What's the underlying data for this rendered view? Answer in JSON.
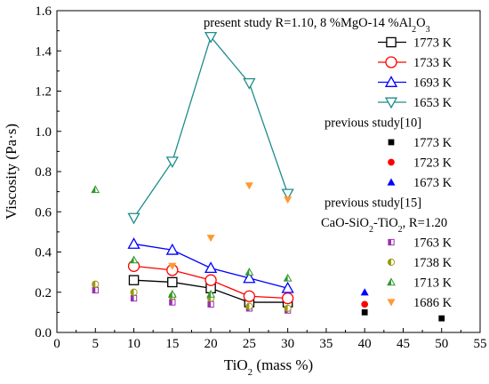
{
  "chart_data": {
    "type": "scatter",
    "xlabel": {
      "main": "TiO",
      "sub": "2",
      "rest": " (mass %)"
    },
    "ylabel": "Viscosity (Pa·s)",
    "xlim": [
      0,
      55
    ],
    "ylim": [
      0,
      1.6
    ],
    "xticks": [
      0,
      5,
      10,
      15,
      20,
      25,
      30,
      35,
      40,
      45,
      50,
      55
    ],
    "yticks": [
      0.0,
      0.2,
      0.4,
      0.6,
      0.8,
      1.0,
      1.2,
      1.4,
      1.6
    ],
    "ytick_labels": [
      "0.0",
      "0.2",
      "0.4",
      "0.6",
      "0.8",
      "1.0",
      "1.2",
      "1.4",
      "1.6"
    ],
    "grid": false,
    "legend_placement": "right",
    "groups": [
      {
        "heading": {
          "parts": [
            {
              "t": "present study R=1.10, 8 %MgO-14 %Al"
            },
            {
              "t": "2",
              "s": "sub"
            },
            {
              "t": "O"
            },
            {
              "t": "3",
              "s": "sub"
            }
          ]
        },
        "series": [
          {
            "name": "1773 K",
            "marker": "square-open",
            "color": "#000000",
            "line": true,
            "x": [
              10,
              15,
              20,
              25,
              30
            ],
            "y": [
              0.26,
              0.25,
              0.22,
              0.15,
              0.15
            ]
          },
          {
            "name": "1733 K",
            "marker": "circle-open",
            "color": "#ff0000",
            "line": true,
            "x": [
              10,
              15,
              20,
              25,
              30
            ],
            "y": [
              0.33,
              0.31,
              0.26,
              0.18,
              0.17
            ]
          },
          {
            "name": "1693 K",
            "marker": "triangle-up-open",
            "color": "#0000ff",
            "line": true,
            "x": [
              10,
              15,
              20,
              25,
              30
            ],
            "y": [
              0.44,
              0.41,
              0.32,
              0.27,
              0.22
            ]
          },
          {
            "name": "1653 K",
            "marker": "triangle-down-open",
            "color": "#1e8c8c",
            "line": true,
            "x": [
              10,
              15,
              20,
              25,
              30
            ],
            "y": [
              0.57,
              0.85,
              1.47,
              1.24,
              0.69
            ]
          }
        ]
      },
      {
        "heading": {
          "parts": [
            {
              "t": "previous study[10]"
            }
          ]
        },
        "series": [
          {
            "name": "1773 K",
            "marker": "square-filled",
            "color": "#000000",
            "line": false,
            "x": [
              40,
              50
            ],
            "y": [
              0.1,
              0.07
            ]
          },
          {
            "name": "1723 K",
            "marker": "circle-filled",
            "color": "#ff0000",
            "line": false,
            "x": [
              40
            ],
            "y": [
              0.14
            ]
          },
          {
            "name": "1673 K",
            "marker": "triangle-up-filled",
            "color": "#0000ff",
            "line": false,
            "x": [
              40
            ],
            "y": [
              0.2
            ]
          }
        ]
      },
      {
        "heading": {
          "parts": [
            {
              "t": "previous study[15]"
            }
          ]
        },
        "subheading": {
          "parts": [
            {
              "t": "CaO-SiO"
            },
            {
              "t": "2",
              "s": "sub"
            },
            {
              "t": "-TiO"
            },
            {
              "t": "2",
              "s": "sub"
            },
            {
              "t": ", R=1.20"
            }
          ]
        },
        "series": [
          {
            "name": "1763 K",
            "marker": "square-half",
            "color": "#9b30b0",
            "line": false,
            "x": [
              5,
              10,
              15,
              20,
              25,
              30
            ],
            "y": [
              0.21,
              0.17,
              0.15,
              0.14,
              0.12,
              0.11
            ]
          },
          {
            "name": "1738 K",
            "marker": "circle-half",
            "color": "#9a9a10",
            "line": false,
            "x": [
              5,
              10,
              15,
              20,
              25,
              30
            ],
            "y": [
              0.24,
              0.2,
              0.18,
              0.17,
              0.13,
              0.12
            ]
          },
          {
            "name": "1713 K",
            "marker": "triangle-up-half",
            "color": "#2e9a2e",
            "line": false,
            "x": [
              5,
              10,
              15,
              20,
              25,
              30
            ],
            "y": [
              0.71,
              0.36,
              0.19,
              0.19,
              0.3,
              0.27
            ]
          },
          {
            "name": "1686 K",
            "marker": "triangle-down-filled",
            "color": "#ff9933",
            "line": false,
            "x": [
              15,
              20,
              25,
              30
            ],
            "y": [
              0.33,
              0.47,
              0.73,
              0.66
            ]
          }
        ]
      }
    ]
  }
}
